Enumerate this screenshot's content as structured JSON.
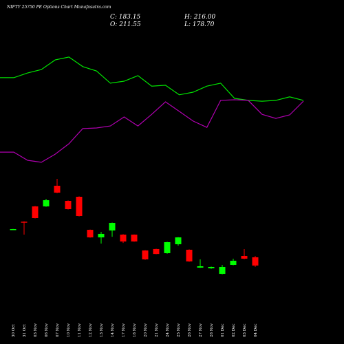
{
  "chart_data": {
    "type": "candlestick",
    "title": "NIFTY 25750  PE Options  Chart Munafasutra.com",
    "close_label": "C: 183.15",
    "high_label": "H: 216.00",
    "open_label": "O: 211.55",
    "low_label": "L: 178.70",
    "categories": [
      "30 Oct",
      "31 Oct",
      "03 Nov",
      "06 Nov",
      "07 Nov",
      "10 Nov",
      "11 Nov",
      "12 Nov",
      "13 Nov",
      "14 Nov",
      "17 Nov",
      "18 Nov",
      "20 Nov",
      "21 Nov",
      "24 Nov",
      "25 Nov",
      "26 Nov",
      "27 Nov",
      "28 Nov",
      "01 Dec",
      "02 Dec",
      "03 Dec",
      "04 Dec"
    ],
    "open": [
      307.5,
      334,
      386.5,
      386.5,
      457.5,
      405.4,
      419.6,
      306,
      280,
      303.7,
      289.5,
      289.5,
      235,
      240,
      225.7,
      256.4,
      237.5,
      176,
      173.7,
      154.7,
      185.5,
      216.2,
      211.55
    ],
    "high": [
      309,
      335,
      388,
      412.5,
      481,
      407,
      421,
      307,
      299,
      331,
      291,
      290,
      236,
      241,
      265,
      281,
      239,
      204.4,
      180,
      185.5,
      206.8,
      239.9,
      216
    ],
    "low": [
      307,
      289.5,
      345,
      385,
      432,
      376,
      352,
      279,
      258.8,
      282,
      261,
      265,
      203,
      222,
      224,
      251.7,
      196,
      175,
      172,
      153,
      184,
      205,
      178.7
    ],
    "close": [
      308.5,
      333,
      346.3,
      407.8,
      433.8,
      377,
      353.4,
      280,
      292,
      329.7,
      265.9,
      266,
      204.4,
      223,
      263.5,
      280,
      197.3,
      180.7,
      178.4,
      178.4,
      199.7,
      206.8,
      183.15
    ],
    "up_color": "#00ff00",
    "down_color": "#ff0000",
    "lines": [
      {
        "color": "#00e400",
        "values": [
          829,
          829,
          845,
          857,
          890,
          900,
          867,
          852,
          810,
          817,
          836,
          800,
          803,
          770,
          779,
          800,
          810,
          758,
          751,
          748,
          751,
          763,
          751
        ]
      },
      {
        "color": "#b000b0",
        "values": [
          573,
          573,
          545,
          538,
          566,
          602,
          654,
          656,
          663,
          694,
          663,
          703,
          746,
          713,
          680,
          658,
          751,
          753,
          751,
          703,
          689,
          701,
          748
        ]
      }
    ],
    "ylim": [
      150,
      1096
    ]
  }
}
